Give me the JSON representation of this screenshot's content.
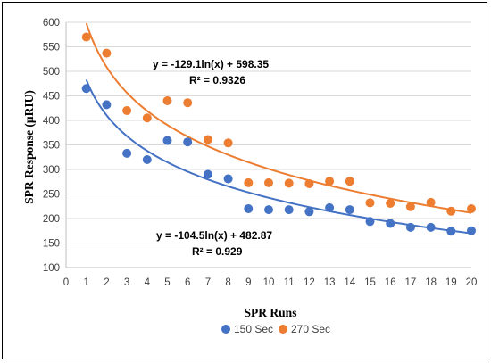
{
  "chart_data": {
    "type": "scatter",
    "xlabel": "SPR Runs",
    "ylabel": "SPR Response (μRIU)",
    "xlim": [
      0,
      20
    ],
    "ylim": [
      100,
      600
    ],
    "x_ticks": [
      "0",
      "1",
      "2",
      "3",
      "4",
      "5",
      "6",
      "7",
      "8",
      "9",
      "10",
      "11",
      "12",
      "13",
      "14",
      "15",
      "16",
      "17",
      "18",
      "19",
      "20"
    ],
    "y_ticks": [
      "100",
      "150",
      "200",
      "250",
      "300",
      "350",
      "400",
      "450",
      "500",
      "550",
      "600"
    ],
    "grid": "horizontal",
    "legend_position": "bottom",
    "series": [
      {
        "name": "150 Sec",
        "color": "#4472C4",
        "x": [
          1,
          2,
          3,
          4,
          5,
          6,
          7,
          8,
          9,
          10,
          11,
          12,
          13,
          14,
          15,
          16,
          17,
          18,
          19,
          20
        ],
        "y": [
          465,
          432,
          333,
          320,
          359,
          356,
          290,
          281,
          220,
          218,
          218,
          214,
          222,
          218,
          194,
          190,
          182,
          182,
          174,
          175
        ],
        "trendline": {
          "a": -104.5,
          "b": 482.87,
          "equation": "y = -104.5ln(x) + 482.87",
          "r2": "R² = 0.929"
        }
      },
      {
        "name": "270 Sec",
        "color": "#ED7D31",
        "x": [
          1,
          2,
          3,
          4,
          5,
          6,
          7,
          8,
          9,
          10,
          11,
          12,
          13,
          14,
          15,
          16,
          17,
          18,
          19,
          20
        ],
        "y": [
          570,
          537,
          420,
          405,
          440,
          436,
          361,
          354,
          273,
          273,
          272,
          271,
          276,
          276,
          232,
          231,
          224,
          233,
          215,
          220
        ],
        "trendline": {
          "a": -129.1,
          "b": 598.35,
          "equation": "y = -129.1ln(x) + 598.35",
          "r2": "R² = 0.9326"
        }
      }
    ]
  }
}
